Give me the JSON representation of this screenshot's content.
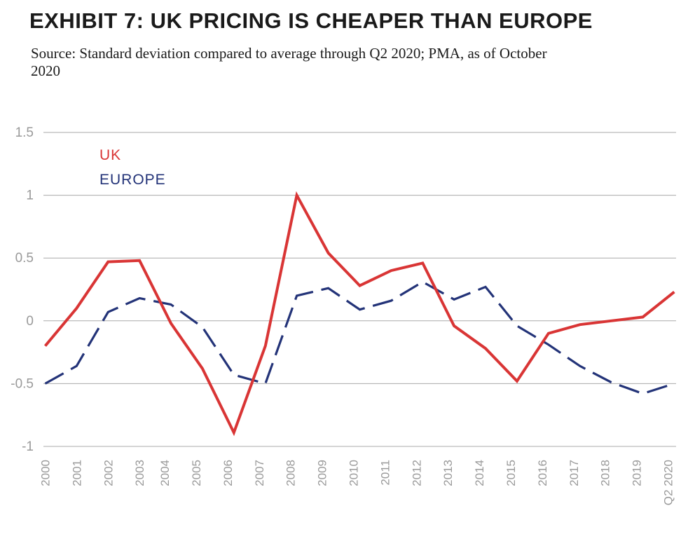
{
  "header": {
    "title": "EXHIBIT 7: UK PRICING IS CHEAPER THAN EUROPE",
    "subtitle": "Source: Standard deviation compared to average through Q2 2020; PMA, as of October 2020"
  },
  "colors": {
    "uk": "#d93535",
    "europe": "#233378",
    "grid": "#aaaaaa",
    "tick": "#9a9a9a"
  },
  "chart_data": {
    "type": "line",
    "categories": [
      "2000",
      "2001",
      "2002",
      "2003",
      "2004",
      "2005",
      "2006",
      "2007",
      "2008",
      "2009",
      "2010",
      "2011",
      "2012",
      "2013",
      "2014",
      "2015",
      "2016",
      "2017",
      "2018",
      "2019",
      "Q2 2020"
    ],
    "x": [
      0.5,
      1.5,
      2.5,
      3.5,
      4.3,
      5.3,
      6.3,
      7.3,
      8.3,
      9.3,
      10.3,
      11.3,
      12.3,
      13.3,
      14.3,
      15.3,
      16.3,
      17.3,
      18.3,
      19.3,
      20.3
    ],
    "series": [
      {
        "name": "UK",
        "style": "solid",
        "x": [
          0.5,
          1.5,
          2.5,
          3.5,
          4.5,
          5.5,
          6.5,
          7.5,
          8.5,
          9.5,
          10.5,
          11.5,
          12.5,
          13.5,
          14.5,
          15.5,
          16.5,
          17.5,
          18.5,
          19.5,
          20.5
        ],
        "values": [
          -0.2,
          0.1,
          0.47,
          0.48,
          -0.02,
          -0.38,
          -0.89,
          -0.2,
          1.0,
          0.54,
          0.28,
          0.4,
          0.46,
          -0.04,
          -0.22,
          -0.48,
          -0.1,
          -0.03,
          0.0,
          0.03,
          0.23
        ]
      },
      {
        "name": "EUROPE",
        "style": "dashed",
        "x": [
          0.5,
          1.5,
          2.5,
          3.5,
          4.5,
          5.5,
          6.5,
          7.5,
          8.5,
          9.5,
          10.5,
          11.5,
          12.5,
          13.5,
          14.5,
          15.5,
          16.5,
          17.5,
          18.5,
          19.5,
          20.5
        ],
        "values": [
          -0.5,
          -0.36,
          0.07,
          0.18,
          0.13,
          -0.05,
          -0.43,
          -0.5,
          0.2,
          0.26,
          0.09,
          0.16,
          0.31,
          0.17,
          0.27,
          -0.04,
          -0.19,
          -0.36,
          -0.49,
          -0.58,
          -0.5
        ]
      }
    ],
    "yticks": [
      "1.5",
      "1",
      "0.5",
      "0",
      "-0.5",
      "-1"
    ],
    "ylim": [
      -1,
      1.5
    ],
    "grid": true,
    "legend": {
      "position": "top-left",
      "entries": [
        "UK",
        "EUROPE"
      ]
    }
  }
}
